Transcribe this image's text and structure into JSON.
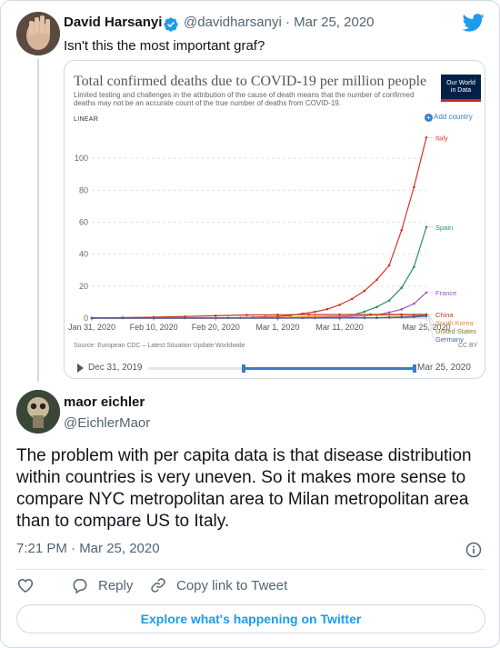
{
  "tweet1": {
    "name": "David Harsanyi",
    "handle": "@davidharsanyi · Mar 25, 2020",
    "text": "Isn't this the most important graf?"
  },
  "chart_card": {
    "title": "Total confirmed deaths due to COVID-19 per million people",
    "subtitle": "Limited testing and challenges in the attribution of the cause of death means that the number of confirmed deaths may not be an accurate count of the true number of deaths from COVID-19.",
    "logo_line1": "Our World",
    "logo_line2": "in Data",
    "scale_label": "LINEAR",
    "add_country": "Add country",
    "source": "Source: European CDC – Latest Situation Update Worldwide",
    "license": "CC BY",
    "timeline_start": "Dec 31, 2019",
    "timeline_end": "Mar 25, 2020",
    "timeline_selection": [
      0.36,
      1.0
    ]
  },
  "chart_data": {
    "type": "line",
    "title": "Total confirmed deaths due to COVID-19 per million people",
    "xlabel": "",
    "ylabel": "",
    "scale": "linear",
    "ylim": [
      0,
      120
    ],
    "yticks": [
      0,
      20,
      40,
      60,
      80,
      100
    ],
    "x_tick_labels": [
      "Jan 31, 2020",
      "Feb 10, 2020",
      "Feb 20, 2020",
      "Mar 1, 2020",
      "Mar 11, 2020",
      "Mar 25, 2020"
    ],
    "x_tick_days": [
      0,
      10,
      20,
      30,
      40,
      54
    ],
    "x_range_days": [
      0,
      54
    ],
    "grid": true,
    "legend": "right-labels",
    "series": [
      {
        "name": "Italy",
        "color": "#d8352b",
        "x": [
          0,
          5,
          10,
          15,
          20,
          22,
          24,
          26,
          28,
          30,
          32,
          34,
          36,
          38,
          40,
          42,
          44,
          46,
          48,
          50,
          52,
          54
        ],
        "y": [
          0,
          0,
          0,
          0,
          0.1,
          0.2,
          0.3,
          0.5,
          0.9,
          1.1,
          1.6,
          2.8,
          3.9,
          5.6,
          8.3,
          12,
          17,
          24,
          33,
          55,
          82,
          113
        ]
      },
      {
        "name": "Spain",
        "color": "#2e8b76",
        "x": [
          0,
          10,
          20,
          30,
          34,
          36,
          38,
          40,
          42,
          44,
          46,
          48,
          50,
          52,
          54
        ],
        "y": [
          0,
          0,
          0,
          0,
          0.1,
          0.2,
          0.5,
          0.9,
          1.8,
          4,
          7,
          11,
          19,
          32,
          57
        ]
      },
      {
        "name": "France",
        "color": "#9a55c2",
        "x": [
          0,
          10,
          20,
          30,
          36,
          40,
          44,
          46,
          48,
          50,
          52,
          54
        ],
        "y": [
          0,
          0,
          0,
          0.1,
          0.3,
          0.7,
          1.4,
          2,
          3.5,
          5.5,
          9,
          16
        ]
      },
      {
        "name": "South Korea",
        "color": "#e88b2c",
        "x": [
          0,
          20,
          24,
          28,
          32,
          36,
          40,
          44,
          48,
          50,
          52,
          54
        ],
        "y": [
          0,
          0,
          0.1,
          0.3,
          0.6,
          1,
          1.3,
          1.6,
          1.9,
          2,
          2.1,
          2.2
        ]
      },
      {
        "name": "United States",
        "color": "#7a7d1f",
        "x": [
          0,
          30,
          36,
          40,
          44,
          46,
          48,
          50,
          52,
          54
        ],
        "y": [
          0,
          0.02,
          0.05,
          0.1,
          0.2,
          0.3,
          0.5,
          0.8,
          1.2,
          2
        ]
      },
      {
        "name": "China",
        "color": "#c0392b",
        "x": [
          0,
          5,
          10,
          15,
          20,
          25,
          30,
          35,
          40,
          45,
          50,
          54
        ],
        "y": [
          0.1,
          0.3,
          0.6,
          1,
          1.5,
          1.9,
          2.1,
          2.2,
          2.2,
          2.3,
          2.3,
          2.3
        ]
      },
      {
        "name": "Germany",
        "color": "#4a5fae",
        "x": [
          0,
          30,
          40,
          44,
          46,
          48,
          50,
          52,
          54
        ],
        "y": [
          0,
          0,
          0.01,
          0.05,
          0.1,
          0.3,
          0.5,
          0.8,
          1.2
        ]
      }
    ]
  },
  "tweet2": {
    "name": "maor eichler",
    "handle": "@EichlerMaor",
    "text": "The problem with per capita data is that disease distribution within countries is very uneven. So it makes more sense to compare NYC metropolitan area to Milan metropolitan area than to compare US to Italy.",
    "timestamp": "7:21 PM · Mar 25, 2020"
  },
  "actions": {
    "reply": "Reply",
    "copy_link": "Copy link to Tweet"
  },
  "explore_label": "Explore what's happening on Twitter",
  "colors": {
    "twitter_blue": "#1d9bf0",
    "owid_navy": "#002147",
    "owid_red": "#ce261e"
  },
  "icons": [
    "twitter-bird-icon",
    "verified-badge-icon",
    "info-icon",
    "heart-icon",
    "reply-icon",
    "link-icon",
    "play-icon",
    "plus-icon"
  ]
}
